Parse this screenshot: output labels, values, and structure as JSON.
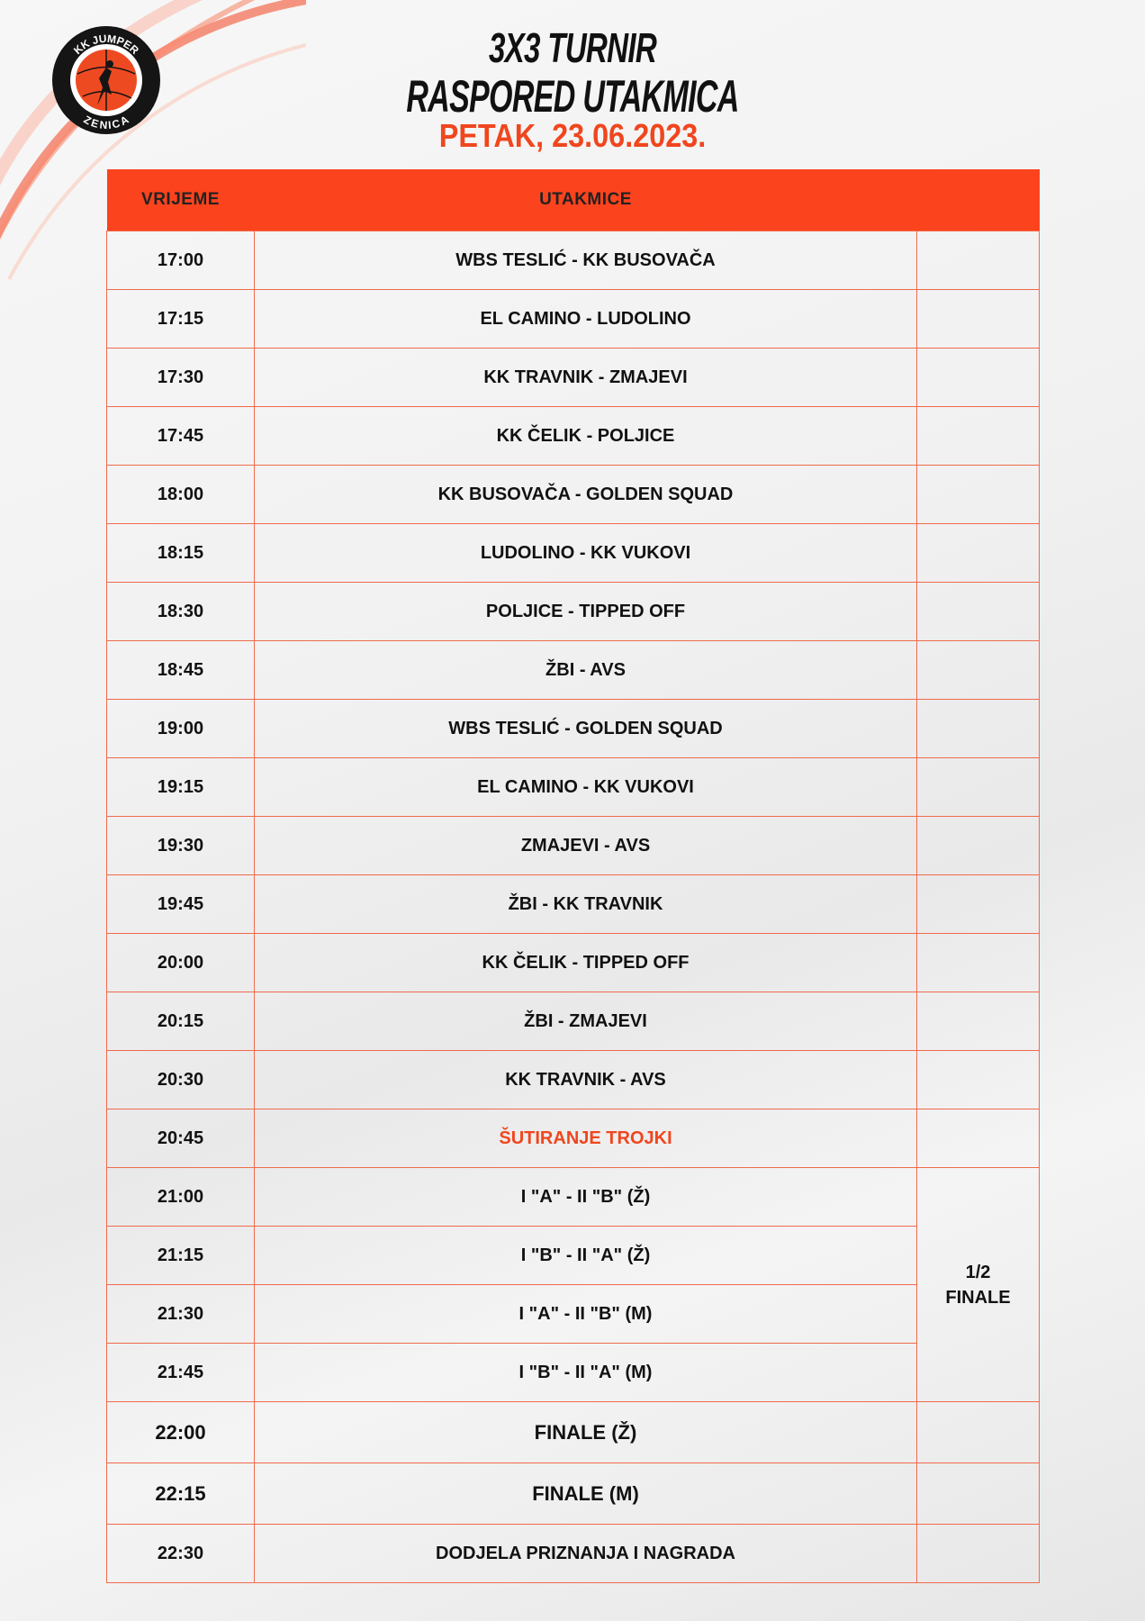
{
  "logo": {
    "top_text": "KK JUMPER",
    "bottom_text": "ZENICA"
  },
  "header": {
    "line1": "3X3 TURNIR",
    "line2": "RASPORED UTAKMICA",
    "date": "PETAK, 23.06.2023."
  },
  "table": {
    "columns": [
      "VRIJEME",
      "UTAKMICE",
      ""
    ],
    "rows": [
      {
        "time": "17:00",
        "match": "WBS TESLIĆ - KK BUSOVAČA"
      },
      {
        "time": "17:15",
        "match": "EL CAMINO - LUDOLINO"
      },
      {
        "time": "17:30",
        "match": "KK TRAVNIK - ZMAJEVI"
      },
      {
        "time": "17:45",
        "match": "KK ČELIK - POLJICE"
      },
      {
        "time": "18:00",
        "match": "KK BUSOVAČA - GOLDEN SQUAD"
      },
      {
        "time": "18:15",
        "match": "LUDOLINO - KK VUKOVI"
      },
      {
        "time": "18:30",
        "match": "POLJICE - TIPPED OFF"
      },
      {
        "time": "18:45",
        "match": "ŽBI - AVS"
      },
      {
        "time": "19:00",
        "match": "WBS TESLIĆ - GOLDEN SQUAD"
      },
      {
        "time": "19:15",
        "match": "EL CAMINO - KK VUKOVI"
      },
      {
        "time": "19:30",
        "match": "ZMAJEVI - AVS"
      },
      {
        "time": "19:45",
        "match": "ŽBI - KK TRAVNIK"
      },
      {
        "time": "20:00",
        "match": "KK ČELIK - TIPPED OFF"
      },
      {
        "time": "20:15",
        "match": "ŽBI - ZMAJEVI"
      },
      {
        "time": "20:30",
        "match": "KK TRAVNIK - AVS"
      },
      {
        "time": "20:45",
        "match": "ŠUTIRANJE TROJKI"
      }
    ],
    "semifinal_label_1": "1/2",
    "semifinal_label_2": "FINALE",
    "semifinal_rows": [
      {
        "time": "21:00",
        "match": "I \"A\" - II \"B\" (Ž)"
      },
      {
        "time": "21:15",
        "match": "I \"B\" - II \"A\" (Ž)"
      },
      {
        "time": "21:30",
        "match": "I \"A\" - II \"B\" (M)"
      },
      {
        "time": "21:45",
        "match": "I \"B\" - II \"A\" (M)"
      }
    ],
    "final_rows": [
      {
        "time": "22:00",
        "match": "FINALE (Ž)"
      },
      {
        "time": "22:15",
        "match": "FINALE (M)"
      },
      {
        "time": "22:30",
        "match": "DODJELA PRIZNANJA I NAGRADA"
      }
    ]
  },
  "colors": {
    "accent": "#fb431d",
    "border": "#f06a4c",
    "text": "#111111"
  }
}
